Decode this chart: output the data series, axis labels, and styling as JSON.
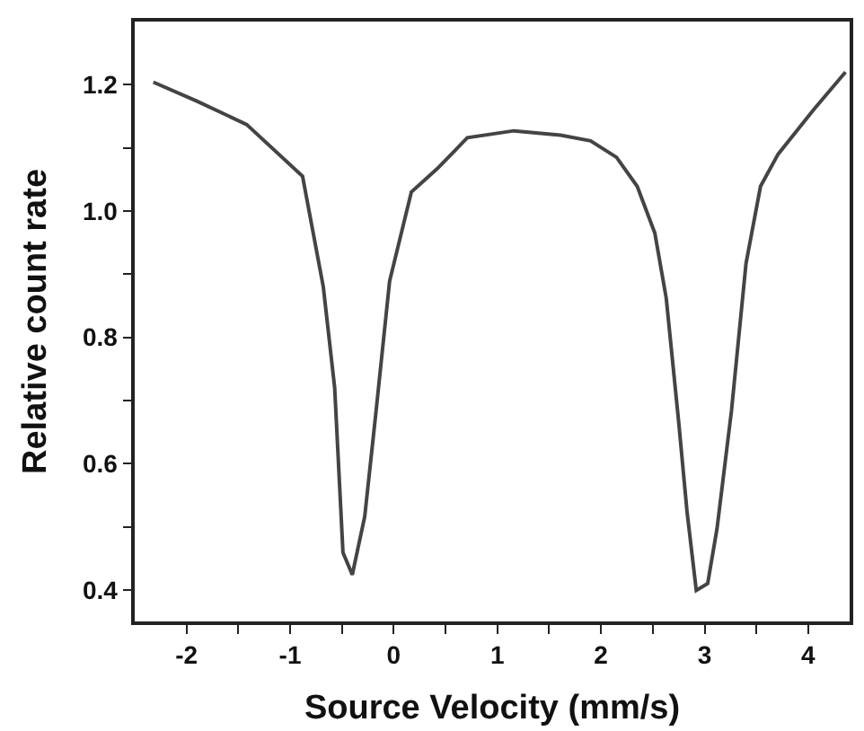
{
  "chart_data": {
    "type": "line",
    "xlabel": "Source Velocity (mm/s)",
    "ylabel": "Relative count rate",
    "x": [
      -2.32,
      -1.9,
      -1.42,
      -0.88,
      -0.68,
      -0.57,
      -0.49,
      -0.4,
      -0.28,
      -0.17,
      -0.04,
      0.17,
      0.42,
      0.71,
      1.16,
      1.61,
      1.9,
      2.15,
      2.35,
      2.52,
      2.63,
      2.75,
      2.83,
      2.92,
      3.03,
      3.12,
      3.26,
      3.4,
      3.54,
      3.71,
      4.05,
      4.36
    ],
    "series": [
      {
        "color": "#444444",
        "values": [
          1.204,
          1.174,
          1.137,
          1.055,
          0.88,
          0.72,
          0.459,
          0.424,
          0.516,
          0.684,
          0.889,
          1.03,
          1.067,
          1.116,
          1.127,
          1.12,
          1.111,
          1.085,
          1.039,
          0.965,
          0.862,
          0.666,
          0.525,
          0.399,
          0.41,
          0.497,
          0.684,
          0.917,
          1.039,
          1.09,
          1.16,
          1.22
        ]
      }
    ],
    "xlim": [
      -2.5,
      4.4
    ],
    "ylim": [
      0.35,
      1.3
    ],
    "xticks": [
      -2,
      {
        "value": -1.5,
        "label": null
      },
      -1,
      {
        "value": -0.5,
        "label": null
      },
      0,
      {
        "value": 0.5,
        "label": null
      },
      1,
      {
        "value": 1.5,
        "label": null
      },
      2,
      {
        "value": 2.5,
        "label": null
      },
      3,
      {
        "value": 3.5,
        "label": null
      },
      4
    ],
    "yticks": [
      0.4,
      {
        "value": 0.5,
        "label": null
      },
      0.6,
      {
        "value": 0.7,
        "label": null
      },
      0.8,
      {
        "value": 0.9,
        "label": null
      },
      {
        "value": 1,
        "label": "1.0"
      },
      {
        "value": 1.1,
        "label": null
      },
      1.2
    ],
    "legend": false,
    "marker": "none",
    "line_style": "solid"
  }
}
